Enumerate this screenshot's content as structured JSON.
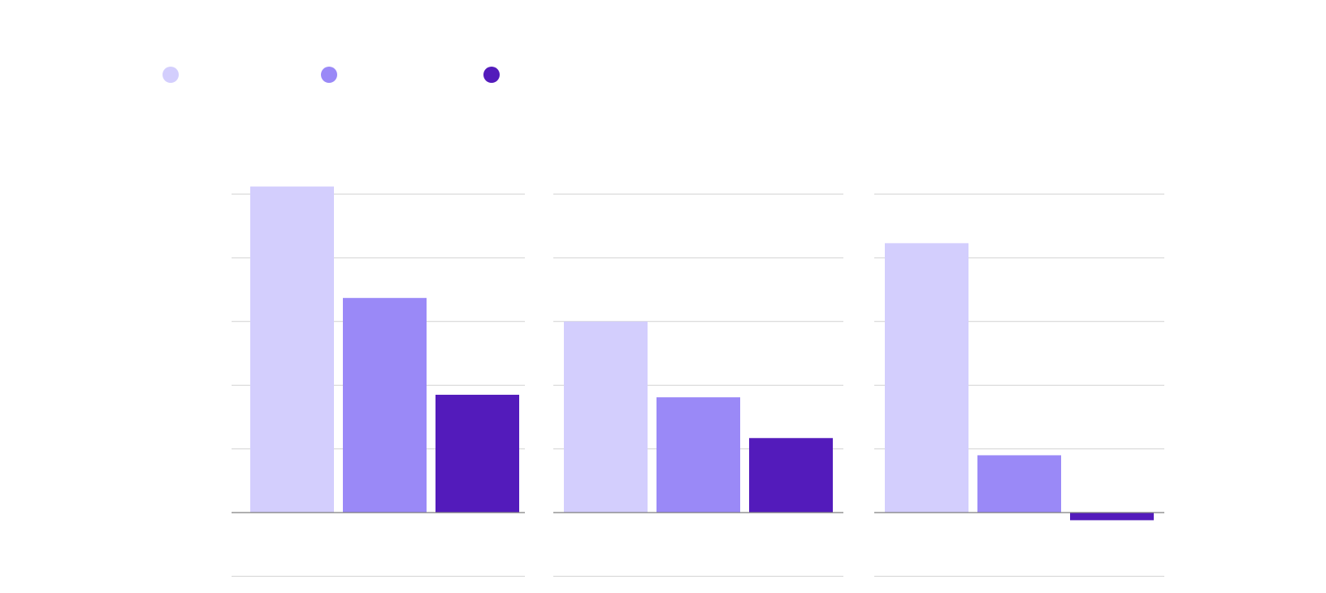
{
  "colors": {
    "series": [
      "#d3cefd",
      "#9a89f7",
      "#531bbb"
    ],
    "gridline": "#d2d2d2",
    "baseline": "#7f7f7f",
    "background": "#ffffff"
  },
  "chart_data": {
    "type": "bar",
    "layout": "small-multiples",
    "title": "",
    "xlabel": "",
    "ylabel": "",
    "legend": {
      "position": "top-left",
      "labels_shown": false
    },
    "grid": true,
    "ylim": [
      -1,
      5
    ],
    "gridline_values": [
      -1,
      1,
      2,
      3,
      4,
      5
    ],
    "panels": [
      {
        "values": [
          5.12,
          3.37,
          1.85
        ]
      },
      {
        "values": [
          3.0,
          1.81,
          1.17
        ]
      },
      {
        "values": [
          4.23,
          0.9,
          -0.12
        ]
      }
    ]
  }
}
